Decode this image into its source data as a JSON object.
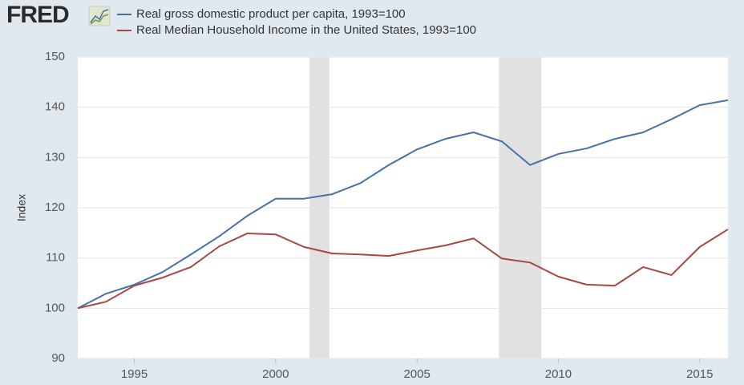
{
  "chart_data": {
    "type": "line",
    "logo": "FRED",
    "ylabel": "Index",
    "x": [
      1993,
      1994,
      1995,
      1996,
      1997,
      1998,
      1999,
      2000,
      2001,
      2002,
      2003,
      2004,
      2005,
      2006,
      2007,
      2008,
      2009,
      2010,
      2011,
      2012,
      2013,
      2014,
      2015,
      2016
    ],
    "series": [
      {
        "name": "Real gross domestic product per capita, 1993=100",
        "color": "#4572a7",
        "values": [
          100,
          102.9,
          104.7,
          107.2,
          110.7,
          114.3,
          118.4,
          121.8,
          121.8,
          122.7,
          124.9,
          128.5,
          131.6,
          133.7,
          135.0,
          133.2,
          128.5,
          130.7,
          131.8,
          133.7,
          135.0,
          137.6,
          140.4,
          141.4
        ]
      },
      {
        "name": "Real Median Household Income in the United States, 1993=100",
        "color": "#aa4643",
        "values": [
          100,
          101.3,
          104.5,
          106.1,
          108.2,
          112.3,
          114.9,
          114.7,
          112.2,
          110.9,
          110.7,
          110.4,
          111.5,
          112.5,
          113.9,
          109.9,
          109.1,
          106.3,
          104.7,
          104.5,
          108.2,
          106.6,
          112.2,
          115.7
        ]
      }
    ],
    "recessions": [
      [
        2001.2,
        2001.9
      ],
      [
        2007.9,
        2009.4
      ]
    ],
    "recession_color": "#e1e1e1",
    "xlim": [
      1993,
      2016
    ],
    "xticks": [
      1995,
      2000,
      2005,
      2010,
      2015
    ],
    "ylim": [
      90,
      150
    ],
    "yticks": [
      90,
      100,
      110,
      120,
      130,
      140,
      150
    ],
    "grid": true
  }
}
